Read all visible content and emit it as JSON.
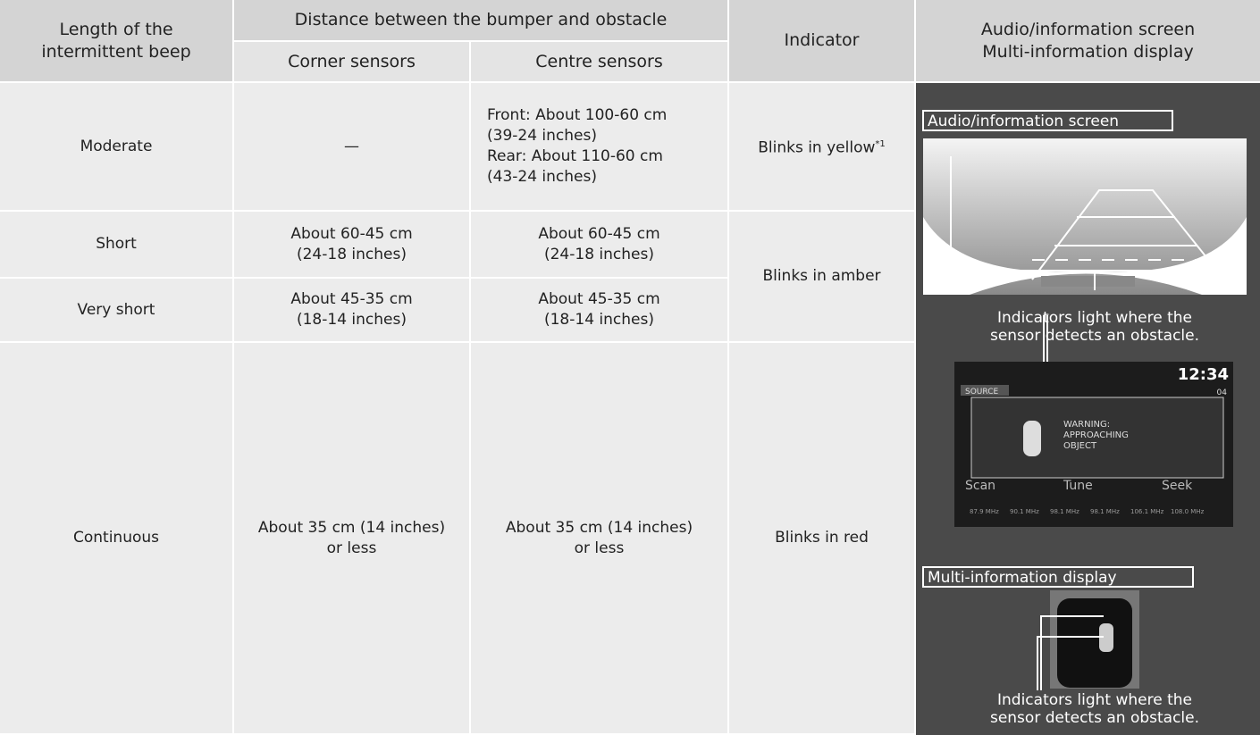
{
  "table": {
    "header": {
      "beep": [
        "Length of the",
        "intermittent beep"
      ],
      "distance": "Distance between the bumper and obstacle",
      "corner": "Corner sensors",
      "centre": "Centre sensors",
      "indicator": "Indicator",
      "screen": [
        "Audio/information screen",
        "Multi-information display"
      ]
    },
    "rows": [
      {
        "beep": "Moderate",
        "corner": [
          "—"
        ],
        "centre": [
          "Front: About 100-60 cm",
          "(39-24 inches)",
          "Rear: About 110-60 cm",
          "(43-24 inches)"
        ],
        "indicator": "Blinks in yellow",
        "footnote": "*1"
      },
      {
        "beep": "Short",
        "corner": [
          "About 60-45 cm",
          "(24-18 inches)"
        ],
        "centre": [
          "About 60-45 cm",
          "(24-18 inches)"
        ],
        "indicator": "Blinks in amber"
      },
      {
        "beep": "Very short",
        "corner": [
          "About 45-35 cm",
          "(18-14 inches)"
        ],
        "centre": [
          "About 45-35 cm",
          "(18-14 inches)"
        ]
      },
      {
        "beep": "Continuous",
        "corner": [
          "About 35 cm (14 inches)",
          "or less"
        ],
        "centre": [
          "About 35 cm (14 inches)",
          "or less"
        ],
        "indicator": "Blinks in red"
      }
    ]
  },
  "illustration": {
    "audio_label": "Audio/information screen",
    "caption_top": [
      "Indicators light where the",
      "sensor detects an obstacle."
    ],
    "audio_screen": {
      "time": "12:34",
      "source": "SOURCE",
      "preset": "04",
      "warning": [
        "WARNING:",
        "APPROACHING",
        "OBJECT"
      ],
      "buttons": [
        "Scan",
        "Tune",
        "Seek"
      ],
      "frequencies": [
        "87.9 MHz",
        "90.1 MHz",
        "98.1 MHz",
        "98.1 MHz",
        "106.1 MHz",
        "108.0 MHz"
      ]
    },
    "mid_label": "Multi-information display",
    "caption_bottom": [
      "Indicators light where the",
      "sensor detects an obstacle."
    ]
  }
}
